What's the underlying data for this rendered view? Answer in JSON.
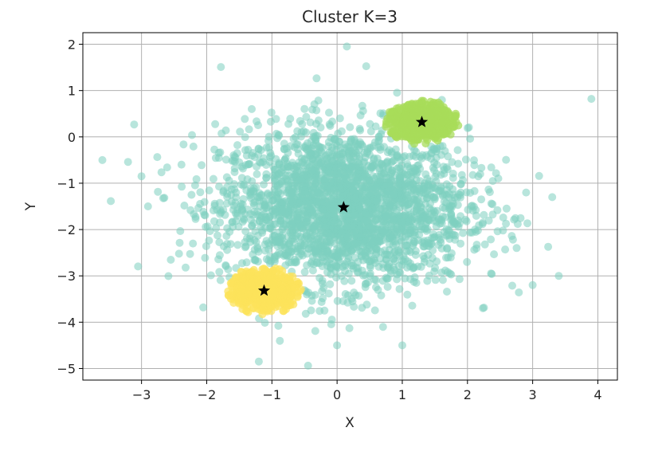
{
  "chart_data": {
    "type": "scatter",
    "title": "Cluster K=3",
    "xlabel": "X",
    "ylabel": "Y",
    "xlim": [
      -3.9,
      4.3
    ],
    "ylim": [
      -5.25,
      2.25
    ],
    "xticks": [
      -3,
      -2,
      -1,
      0,
      1,
      2,
      3,
      4
    ],
    "yticks": [
      -5,
      -4,
      -3,
      -2,
      -1,
      0,
      1,
      2
    ],
    "xtick_labels": [
      "−3",
      "−2",
      "−1",
      "0",
      "1",
      "2",
      "3",
      "4"
    ],
    "ytick_labels": [
      "−5",
      "−4",
      "−3",
      "−2",
      "−1",
      "0",
      "1",
      "2"
    ],
    "grid": true,
    "legend": "none",
    "clusters": [
      {
        "color": "#7ecfc0",
        "center": [
          0.1,
          -1.52
        ],
        "spread": [
          0.95,
          0.85
        ],
        "point_count": 2600,
        "opacity": 0.55,
        "notable_points": [
          [
            -3.6,
            -0.5
          ],
          [
            3.9,
            0.82
          ],
          [
            0.15,
            1.95
          ],
          [
            -1.2,
            -4.85
          ],
          [
            3.4,
            -3.0
          ],
          [
            -3.0,
            -0.85
          ],
          [
            2.9,
            -1.2
          ],
          [
            3.3,
            -1.3
          ],
          [
            -2.9,
            -1.5
          ],
          [
            0.0,
            -4.5
          ],
          [
            1.0,
            -4.5
          ],
          [
            3.0,
            -3.2
          ]
        ]
      },
      {
        "color": "#a8dc5a",
        "center": [
          1.3,
          0.32
        ],
        "spread": [
          0.3,
          0.22
        ],
        "point_count": 550,
        "opacity": 0.75,
        "notable_points": []
      },
      {
        "color": "#fce35b",
        "center": [
          -1.12,
          -3.32
        ],
        "spread": [
          0.3,
          0.24
        ],
        "point_count": 550,
        "opacity": 0.75,
        "notable_points": []
      }
    ],
    "centroids": [
      [
        0.1,
        -1.52
      ],
      [
        1.3,
        0.32
      ],
      [
        -1.12,
        -3.32
      ]
    ],
    "centroid_color": "#000000",
    "centroid_marker": "star"
  }
}
